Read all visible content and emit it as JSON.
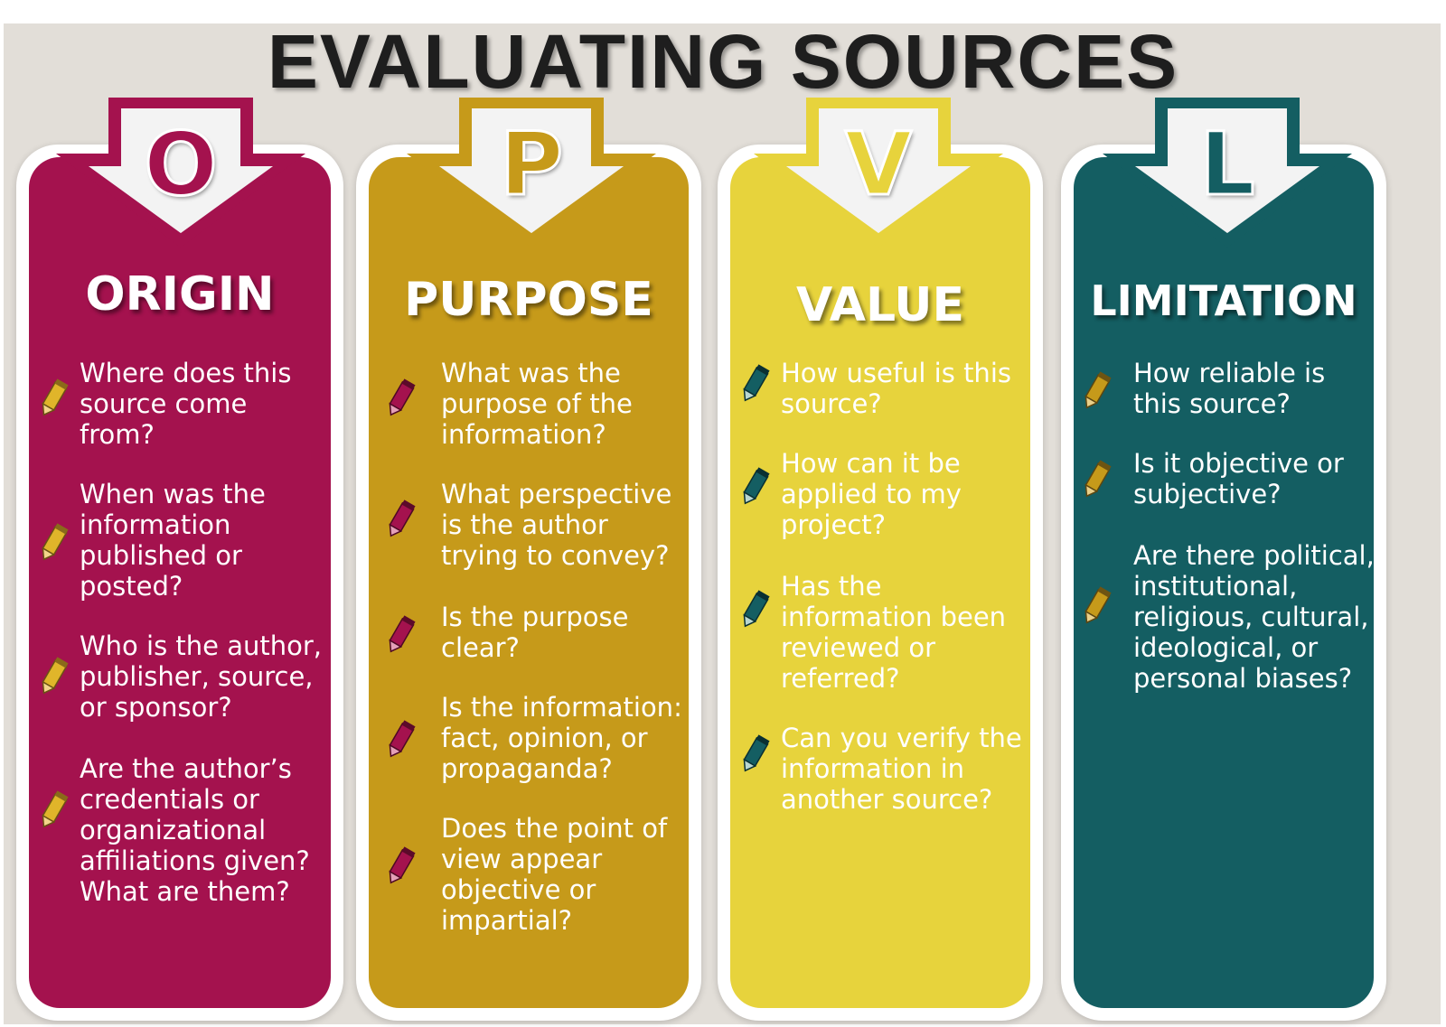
{
  "title": "EVALUATING SOURCES",
  "colors": {
    "background": "#e2ded8",
    "origin": "#a4124e",
    "purpose": "#c69a1a",
    "value": "#e7d33c",
    "limitation": "#145e62"
  },
  "columns": [
    {
      "letter": "O",
      "heading": "ORIGIN",
      "pencil_icon": "yellow-pencil-icon",
      "items": [
        "Where does this source come from?",
        "When was the information published or posted?",
        "Who is the author, publisher, source, or sponsor?",
        "Are the author’s credentials or organizational affiliations given? What are them?"
      ]
    },
    {
      "letter": "P",
      "heading": "PURPOSE",
      "pencil_icon": "red-pencil-icon",
      "items": [
        "What was the purpose of the information?",
        "What perspective is the author trying to convey?",
        "Is the purpose clear?",
        "Is the information: fact, opinion, or propaganda?",
        "Does the point of view appear objective or impartial?"
      ]
    },
    {
      "letter": "V",
      "heading": "VALUE",
      "pencil_icon": "teal-pencil-icon",
      "items": [
        "How useful is this source?",
        "How can it be applied to my project?",
        "Has the information been reviewed or referred?",
        "Can you verify the information in another source?"
      ]
    },
    {
      "letter": "L",
      "heading": "LIMITATION",
      "pencil_icon": "gold-pencil-icon",
      "items": [
        "How reliable is this source?",
        "Is it objective or subjective?",
        "Are there political, institutional, religious, cultural, ideological, or personal biases?"
      ]
    }
  ]
}
